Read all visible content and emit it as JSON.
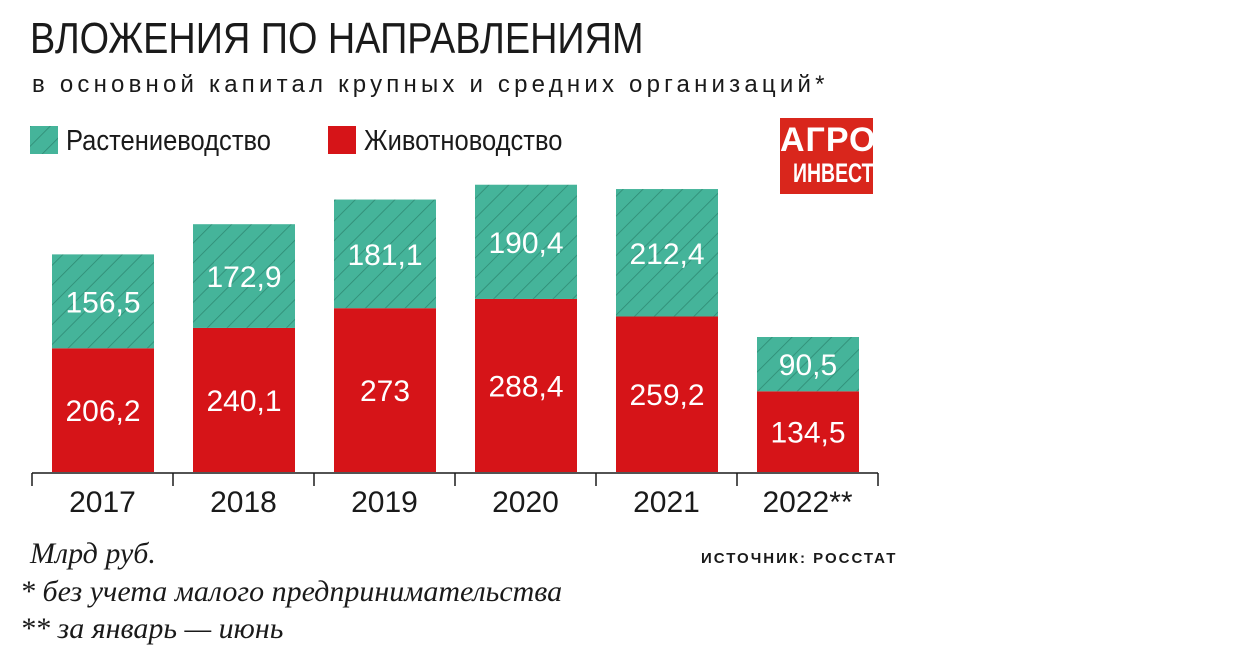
{
  "title": "ВЛОЖЕНИЯ ПО НАПРАВЛЕНИЯМ",
  "subtitle": "в основной капитал крупных и средних организаций*",
  "logo": {
    "line1": "АГРО",
    "line2": "ИНВЕСТОР"
  },
  "notes": {
    "units": "Млрд руб.",
    "footnote1": "* без учета малого предпринимательства",
    "footnote2": "** за январь — июнь",
    "source": "ИСТОЧНИК: РОССТАТ"
  },
  "colors": {
    "crops": "#45b49a",
    "crops_hatch": "#2f8a74",
    "livestock": "#d61418",
    "logo_bg": "#d9261c",
    "label_text": "#ffffff"
  },
  "chart_data": {
    "type": "bar",
    "stacked": true,
    "categories": [
      "2017",
      "2018",
      "2019",
      "2020",
      "2021",
      "2022**"
    ],
    "series": [
      {
        "name": "Животноводство",
        "values": [
          206.2,
          240.1,
          273,
          288.4,
          259.2,
          134.5
        ],
        "labels": [
          "206,2",
          "240,1",
          "273",
          "288,4",
          "259,2",
          "134,5"
        ]
      },
      {
        "name": "Растениеводство",
        "values": [
          156.5,
          172.9,
          181.1,
          190.4,
          212.4,
          90.5
        ],
        "labels": [
          "156,5",
          "172,9",
          "181,1",
          "190,4",
          "212,4",
          "90,5"
        ]
      }
    ],
    "legend": [
      "Растениеводство",
      "Животноводство"
    ],
    "legend_position": "top-left",
    "ylim": [
      0,
      480
    ],
    "grid": false,
    "xlabel": "",
    "ylabel": ""
  }
}
